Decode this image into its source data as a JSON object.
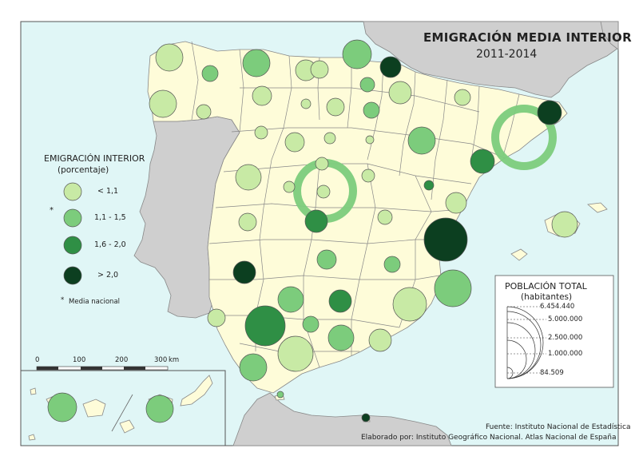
{
  "title": "EMIGRACIÓN MEDIA INTERIOR",
  "subtitle": "2011-2014",
  "legend_emigration": {
    "title": "EMIGRACIÓN INTERIOR",
    "subtitle": "(porcentaje)",
    "classes": [
      {
        "label": "< 1,1",
        "color": "#c8eaa5"
      },
      {
        "label": "1,1 - 1,5",
        "color": "#7ccc7c"
      },
      {
        "label": "1,6 - 2,0",
        "color": "#2f8f45"
      },
      {
        "label": "> 2,0",
        "color": "#0c3f20"
      }
    ],
    "national_mark": "*",
    "national_label": "Media nacional"
  },
  "legend_population": {
    "title": "POBLACIÓN TOTAL",
    "subtitle": "(habitantes)",
    "values": [
      "6.454.440",
      "5.000.000",
      "2.500.000",
      "1.000.000",
      "84.509"
    ]
  },
  "scalebar": {
    "ticks": [
      "0",
      "100",
      "200",
      "300"
    ],
    "unit": "km"
  },
  "source": "Fuente: Instituto Nacional de Estadística",
  "credits": "Elaborado por: Instituto Geográfico Nacional. Atlas Nacional de España",
  "colors": {
    "sea": "#e0f6f6",
    "spain_land": "#fefcd9",
    "other_land": "#cfcfcf",
    "border": "#888888"
  }
}
